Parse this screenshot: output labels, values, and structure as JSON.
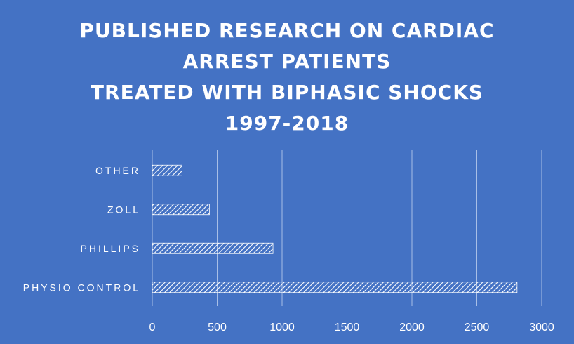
{
  "title_lines": [
    "PUBLISHED RESEARCH ON CARDIAC",
    "ARREST PATIENTS",
    "TREATED WITH BIPHASIC SHOCKS",
    "1997-2018"
  ],
  "colors": {
    "background": "#4472C4",
    "text": "#FFFFFF",
    "gridline": "#A9BFE6",
    "bar_hatch": "#FFFFFF"
  },
  "chart_data": {
    "type": "bar",
    "orientation": "horizontal",
    "title": "PUBLISHED RESEARCH ON CARDIAC ARREST PATIENTS TREATED WITH BIPHASIC SHOCKS 1997-2018",
    "categories": [
      "OTHER",
      "ZOLL",
      "PHILLIPS",
      "PHYSIO CONTROL"
    ],
    "values": [
      230,
      440,
      930,
      2810
    ],
    "xlabel": "",
    "ylabel": "",
    "xlim": [
      0,
      3000
    ],
    "ticks": [
      0,
      500,
      1000,
      1500,
      2000,
      2500,
      3000
    ],
    "grid": true,
    "legend": "none",
    "bar_fill": "diagonal-hatch"
  }
}
